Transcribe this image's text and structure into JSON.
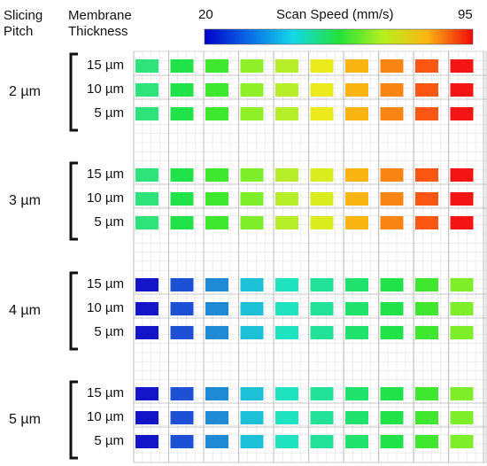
{
  "headers": {
    "pitch_line1": "Slicing",
    "pitch_line2": "Pitch",
    "thickness_line1": "Membrane",
    "thickness_line2": "Thickness"
  },
  "colorbar": {
    "label": "Scan Speed (mm/s)",
    "min": "20",
    "max": "95",
    "min_value": 20,
    "max_value": 95
  },
  "groups": [
    {
      "pitch": "2 µm",
      "rows": [
        {
          "thickness": "15 µm",
          "colors": [
            "#2ee37a",
            "#22e24a",
            "#3fe72e",
            "#8ff02a",
            "#b6ef2a",
            "#eaea1c",
            "#fbb512",
            "#fb8514",
            "#fb5612",
            "#f41414"
          ]
        },
        {
          "thickness": "10 µm",
          "colors": [
            "#2ee37a",
            "#22e24a",
            "#3fe72e",
            "#8ff02a",
            "#b6ef2a",
            "#eaea1c",
            "#fbb512",
            "#fb8514",
            "#fb5612",
            "#f41414"
          ]
        },
        {
          "thickness": "5 µm",
          "colors": [
            "#2ee37a",
            "#22e24a",
            "#3fe72e",
            "#8ff02a",
            "#b6ef2a",
            "#eaea1c",
            "#fbb512",
            "#fb8514",
            "#fb5612",
            "#f41414"
          ]
        }
      ]
    },
    {
      "pitch": "3 µm",
      "rows": [
        {
          "thickness": "15 µm",
          "colors": [
            "#2ee37a",
            "#22e24a",
            "#3fe72e",
            "#7eee2a",
            "#b6ef2a",
            "#d9ec1e",
            "#fbb512",
            "#fb8514",
            "#fb5612",
            "#f41414"
          ]
        },
        {
          "thickness": "10 µm",
          "colors": [
            "#2ee37a",
            "#22e24a",
            "#3fe72e",
            "#7eee2a",
            "#b6ef2a",
            "#d9ec1e",
            "#fbb512",
            "#fb8514",
            "#fb5612",
            "#f41414"
          ]
        },
        {
          "thickness": "5 µm",
          "colors": [
            "#2ee37a",
            "#22e24a",
            "#3fe72e",
            "#7eee2a",
            "#b6ef2a",
            "#d9ec1e",
            "#fbb512",
            "#fb8514",
            "#fb5612",
            "#f41414"
          ]
        }
      ]
    },
    {
      "pitch": "4 µm",
      "rows": [
        {
          "thickness": "15 µm",
          "colors": [
            "#1414c8",
            "#1e50d6",
            "#1e8ad6",
            "#1ec0d8",
            "#1ee2c0",
            "#22e29a",
            "#22e26e",
            "#22e24a",
            "#3fe72e",
            "#7eee2a"
          ]
        },
        {
          "thickness": "10 µm",
          "colors": [
            "#1414c8",
            "#1e50d6",
            "#1e8ad6",
            "#1ec0d8",
            "#1ee2c0",
            "#22e29a",
            "#22e26e",
            "#22e24a",
            "#3fe72e",
            "#7eee2a"
          ]
        },
        {
          "thickness": "5 µm",
          "colors": [
            "#1414c8",
            "#1e50d6",
            "#1e8ad6",
            "#1ec0d8",
            "#1ee2c0",
            "#22e29a",
            "#22e26e",
            "#22e24a",
            "#3fe72e",
            "#7eee2a"
          ]
        }
      ]
    },
    {
      "pitch": "5 µm",
      "rows": [
        {
          "thickness": "15 µm",
          "colors": [
            "#1414c8",
            "#1e50d6",
            "#1e8ad6",
            "#1ec0d8",
            "#1ee2c0",
            "#22e29a",
            "#22e26e",
            "#22e24a",
            "#3fe72e",
            "#7eee2a"
          ]
        },
        {
          "thickness": "10 µm",
          "colors": [
            "#1414c8",
            "#1e50d6",
            "#1e8ad6",
            "#1ec0d8",
            "#1ee2c0",
            "#22e29a",
            "#22e26e",
            "#22e24a",
            "#3fe72e",
            "#7eee2a"
          ]
        },
        {
          "thickness": "5 µm",
          "colors": [
            "#1414c8",
            "#1e50d6",
            "#1e8ad6",
            "#1ec0d8",
            "#1ee2c0",
            "#22e29a",
            "#22e26e",
            "#22e24a",
            "#3fe72e",
            "#7eee2a"
          ]
        }
      ]
    }
  ]
}
